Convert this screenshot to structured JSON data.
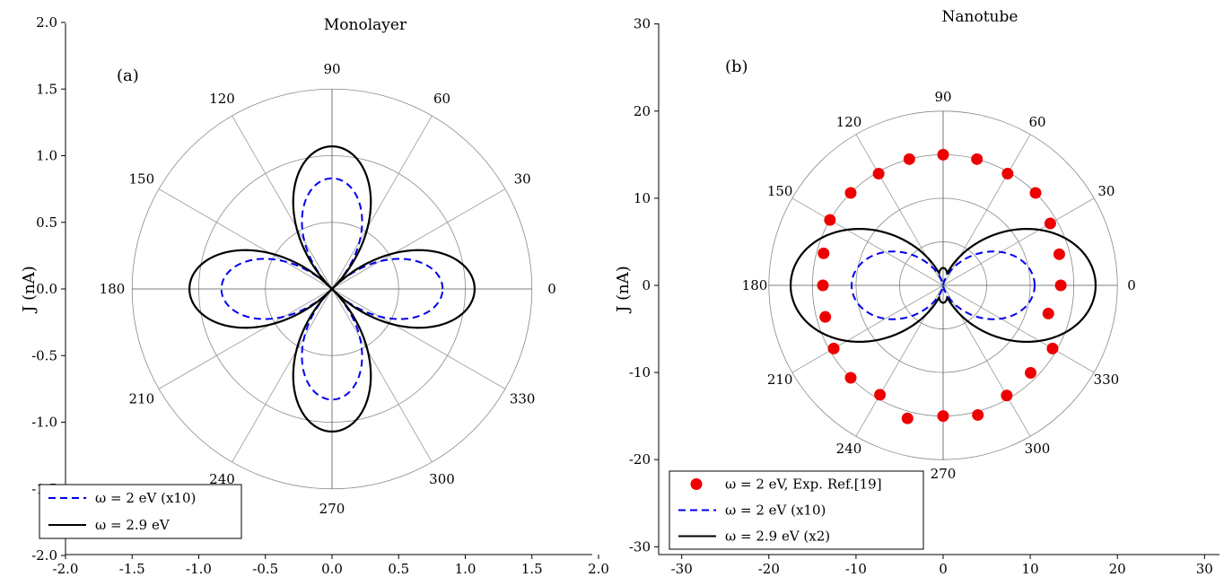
{
  "chart_data": [
    {
      "type": "polar",
      "panel_label": "(a)",
      "title": "Monolayer",
      "ylabel": "J (nA)",
      "xlim": [
        -2.0,
        2.0
      ],
      "ylim": [
        -2.0,
        2.0
      ],
      "x_ticks": [
        "-2.0",
        "-1.5",
        "-1.0",
        "-0.5",
        "0.0",
        "0.5",
        "1.0",
        "1.5",
        "2.0"
      ],
      "y_ticks": [
        "2.0",
        "1.5",
        "1.0",
        "0.5",
        "0.0",
        "-0.5",
        "-1.0",
        "-1.5",
        "-2.0"
      ],
      "radial_grid": [
        0.5,
        1.0,
        1.5
      ],
      "angle_labels": [
        "0",
        "30",
        "60",
        "90",
        "120",
        "150",
        "180",
        "210",
        "240",
        "270",
        "300",
        "330"
      ],
      "legend_position": "bottom-left",
      "series": [
        {
          "name": "ω = 2 eV (x10)",
          "style": "dashed",
          "color": "#0000ee",
          "shape": "four-lobe",
          "max_r_horizontal": 0.83,
          "max_r_vertical": 0.83
        },
        {
          "name": "ω = 2.9 eV",
          "style": "solid",
          "color": "#000000",
          "shape": "four-lobe",
          "max_r_horizontal": 1.07,
          "max_r_vertical": 1.07
        }
      ]
    },
    {
      "type": "polar",
      "panel_label": "(b)",
      "title": "Nanotube",
      "ylabel": "J (nA)",
      "xlim": [
        -32,
        32
      ],
      "ylim": [
        -32,
        32
      ],
      "x_ticks": [
        "-30",
        "-20",
        "-10",
        "0",
        "10",
        "20",
        "30"
      ],
      "y_ticks": [
        "30",
        "20",
        "10",
        "0",
        "-10",
        "-20",
        "-30"
      ],
      "radial_grid": [
        5,
        10,
        15,
        20
      ],
      "angle_labels": [
        "0",
        "30",
        "60",
        "90",
        "120",
        "150",
        "180",
        "210",
        "240",
        "270",
        "300",
        "330"
      ],
      "legend_position": "bottom-left",
      "series": [
        {
          "name": "ω = 2 eV, Exp. Ref.[19]",
          "style": "markers",
          "color": "#ee0000",
          "points": [
            [
              0,
              13.5
            ],
            [
              15,
              13.8
            ],
            [
              30,
              14.2
            ],
            [
              45,
              15.0
            ],
            [
              60,
              14.8
            ],
            [
              75,
              15.0
            ],
            [
              90,
              15.0
            ],
            [
              105,
              15.0
            ],
            [
              120,
              14.8
            ],
            [
              135,
              15.0
            ],
            [
              150,
              15.0
            ],
            [
              165,
              14.2
            ],
            [
              180,
              13.8
            ],
            [
              195,
              14.0
            ],
            [
              210,
              14.5
            ],
            [
              225,
              15.0
            ],
            [
              240,
              14.5
            ],
            [
              255,
              15.8
            ],
            [
              270,
              15.0
            ],
            [
              285,
              15.4
            ],
            [
              300,
              14.6
            ],
            [
              315,
              14.2
            ],
            [
              330,
              14.5
            ],
            [
              345,
              12.5
            ]
          ]
        },
        {
          "name": "ω = 2 eV (x10)",
          "style": "dashed",
          "color": "#0000ee",
          "shape": "two-lobe-horizontal",
          "max_r_horizontal": 10.5,
          "minor_r_vertical": 0.0
        },
        {
          "name": "ω = 2.9 eV (x2)",
          "style": "solid",
          "color": "#000000",
          "shape": "two-lobe-horizontal",
          "max_r_horizontal": 17.5,
          "minor_r_vertical": 2.0
        }
      ]
    }
  ]
}
